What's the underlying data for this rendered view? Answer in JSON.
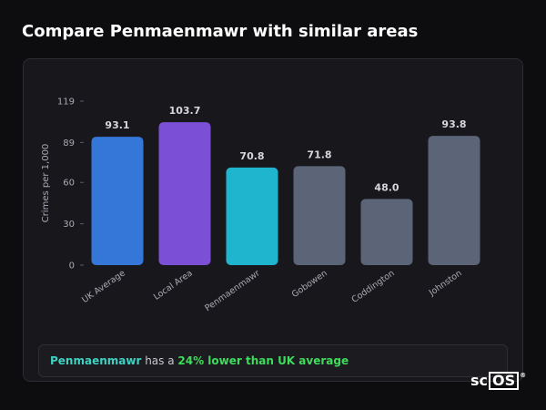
{
  "header": {
    "title": "Compare Penmaenmawr with similar areas"
  },
  "colors": {
    "uk_average": "#3577d9",
    "local_area": "#7b4fd6",
    "focus_area": "#1fb5cf",
    "comparison": "#5b6577",
    "text_muted": "#a9a9b3",
    "value_label": "#d6d6dc",
    "highlight_area": "#3fd1c2",
    "highlight_diff": "#3ddc5a"
  },
  "chart_data": {
    "type": "bar",
    "categories": [
      "UK Average",
      "Local Area",
      "Penmaenmawr",
      "Gobowen",
      "Coddington",
      "Johnston"
    ],
    "values": [
      93.1,
      103.7,
      70.8,
      71.8,
      48.0,
      93.8
    ],
    "value_labels": [
      "93.1",
      "103.7",
      "70.8",
      "71.8",
      "48.0",
      "93.8"
    ],
    "bar_colors": [
      "#3577d9",
      "#7b4fd6",
      "#1fb5cf",
      "#5b6577",
      "#5b6577",
      "#5b6577"
    ],
    "ylabel": "Crimes per 1,000",
    "yticks": [
      0,
      30,
      60,
      89,
      119
    ],
    "ylim": [
      0,
      119
    ],
    "grid": false,
    "legend": "none"
  },
  "summary": {
    "area": "Penmaenmawr",
    "text_mid": " has a ",
    "difference": "24% lower than UK average"
  },
  "logo": {
    "prefix": "sc",
    "boxed": "OS",
    "mark": "®"
  }
}
